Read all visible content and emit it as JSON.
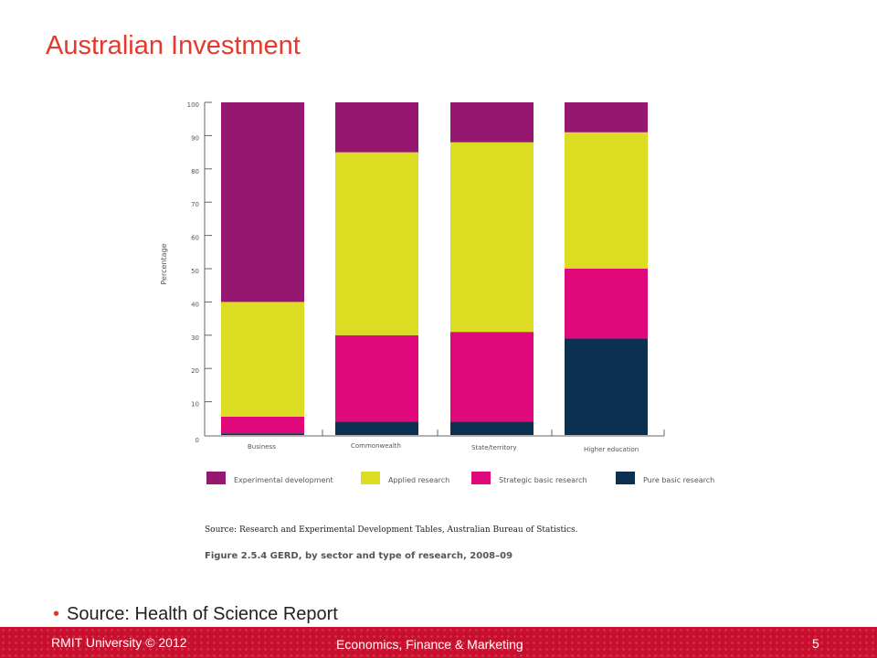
{
  "slide": {
    "title": "Australian Investment",
    "bullet": "Source: Health of Science Report"
  },
  "footer": {
    "left": "RMIT University © 2012",
    "center": "Economics, Finance & Marketing",
    "page": "5"
  },
  "figure": {
    "source": "Source: Research and Experimental Development Tables, Australian Bureau of Statistics.",
    "caption": "Figure 2.5.4  GERD, by sector and type of research, 2008–09"
  },
  "colors": {
    "title": "#e33a2c",
    "footer_bg": "#c8102e"
  },
  "chart_data": {
    "type": "bar",
    "stacked": true,
    "ylabel": "Percentage",
    "xlabel": "",
    "ylim": [
      0,
      100
    ],
    "yticks": [
      0,
      10,
      20,
      30,
      40,
      50,
      60,
      70,
      80,
      90,
      100
    ],
    "categories": [
      "Business",
      "Commonwealth",
      "State/territory",
      "Higher education"
    ],
    "series": [
      {
        "name": "Pure basic research",
        "color": "#0b3050",
        "values": [
          0.5,
          4,
          4,
          29
        ]
      },
      {
        "name": "Strategic basic research",
        "color": "#e0097c",
        "values": [
          5,
          26,
          27,
          21
        ]
      },
      {
        "name": "Applied research",
        "color": "#dcdc23",
        "values": [
          34.5,
          55,
          57,
          41
        ]
      },
      {
        "name": "Experimental development",
        "color": "#96176f",
        "values": [
          60,
          15,
          12,
          9
        ]
      }
    ],
    "legend_order": [
      "Experimental development",
      "Applied research",
      "Strategic basic research",
      "Pure basic research"
    ],
    "legend_position": "bottom",
    "grid": false
  }
}
